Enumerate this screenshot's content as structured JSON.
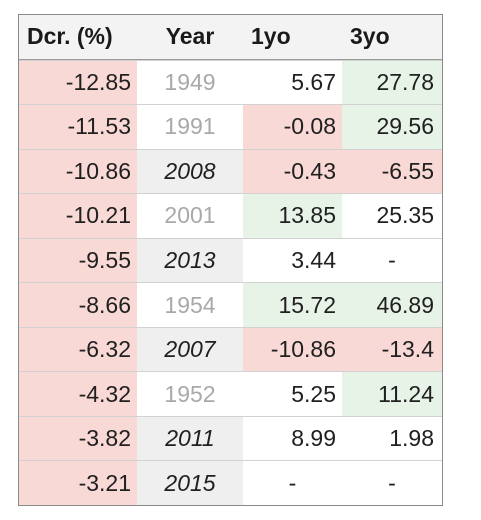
{
  "headers": [
    "Dcr. (%)",
    "Year",
    "1yo",
    "3yo"
  ],
  "rows": [
    {
      "dcr": "-12.85",
      "year": "1949",
      "y1": "5.67",
      "y3": "27.78"
    },
    {
      "dcr": "-11.53",
      "year": "1991",
      "y1": "-0.08",
      "y3": "29.56"
    },
    {
      "dcr": "-10.86",
      "year": "2008",
      "y1": "-0.43",
      "y3": "-6.55"
    },
    {
      "dcr": "-10.21",
      "year": "2001",
      "y1": "13.85",
      "y3": "25.35"
    },
    {
      "dcr": "-9.55",
      "year": "2013",
      "y1": "3.44",
      "y3": "-"
    },
    {
      "dcr": "-8.66",
      "year": "1954",
      "y1": "15.72",
      "y3": "46.89"
    },
    {
      "dcr": "-6.32",
      "year": "2007",
      "y1": "-10.86",
      "y3": "-13.4"
    },
    {
      "dcr": "-4.32",
      "year": "1952",
      "y1": "5.25",
      "y3": "11.24"
    },
    {
      "dcr": "-3.82",
      "year": "2011",
      "y1": "8.99",
      "y3": "1.98"
    },
    {
      "dcr": "-3.21",
      "year": "2015",
      "y1": "-",
      "y3": "-"
    }
  ],
  "colors": {
    "negative_bg": "#f9d9d6",
    "positive_bg": "#e6f3e6",
    "highlight_year_bg": "#efefef",
    "faded_year_text": "#a9a9a9"
  }
}
